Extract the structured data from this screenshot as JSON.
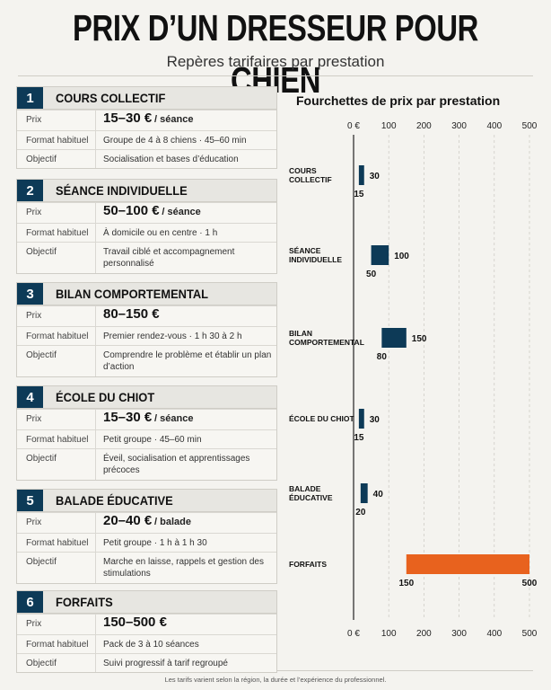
{
  "header": {
    "title": "PRIX D’UN DRESSEUR POUR CHIEN",
    "subtitle": "Repères tarifaires par prestation"
  },
  "labels": {
    "prix": "Prix",
    "format": "Format habituel",
    "objectif": "Objectif"
  },
  "cards": [
    {
      "num": "1",
      "title": "COURS COLLECTIF",
      "price": "15–30 €",
      "unit": "/ séance",
      "format": "Groupe de 4 à 8 chiens · 45–60 min",
      "objectif": "Socialisation et bases d’éducation"
    },
    {
      "num": "2",
      "title": "SÉANCE INDIVIDUELLE",
      "price": "50–100 €",
      "unit": "/ séance",
      "format": "À domicile ou en centre · 1 h",
      "objectif": "Travail ciblé et accompagnement personnalisé"
    },
    {
      "num": "3",
      "title": "BILAN COMPORTEMENTAL",
      "price": "80–150 €",
      "unit": "",
      "format": "Premier rendez-vous · 1 h 30 à 2 h",
      "objectif": "Comprendre le problème et établir un plan d’action"
    },
    {
      "num": "4",
      "title": "ÉCOLE DU CHIOT",
      "price": "15–30 €",
      "unit": "/ séance",
      "format": "Petit groupe · 45–60 min",
      "objectif": "Éveil, socialisation et apprentissages précoces"
    },
    {
      "num": "5",
      "title": "BALADE ÉDUCATIVE",
      "price": "20–40 €",
      "unit": "/ balade",
      "format": "Petit groupe · 1 h à 1 h 30",
      "objectif": "Marche en laisse, rappels et gestion des stimulations"
    },
    {
      "num": "6",
      "title": "FORFAITS",
      "price": "150–500 €",
      "unit": "",
      "format": "Pack de 3 à 10 séances",
      "objectif": "Suivi progressif à tarif regroupé"
    }
  ],
  "footnote": "Les tarifs varient selon la région, la durée et l’expérience du professionnel.",
  "chart_data": {
    "type": "bar",
    "orientation": "horizontal-range",
    "title": "Fourchettes de prix par prestation",
    "xlim": [
      0,
      500
    ],
    "xticks": [
      "0 €",
      "100",
      "200",
      "300",
      "400",
      "500"
    ],
    "categories": [
      [
        "COURS",
        "COLLECTIF"
      ],
      [
        "SÉANCE",
        "INDIVIDUELLE"
      ],
      [
        "BILAN",
        "COMPORTEMENTAL"
      ],
      [
        "ÉCOLE DU CHIOT"
      ],
      [
        "BALADE",
        "ÉDUCATIVE"
      ],
      [
        "FORFAITS"
      ]
    ],
    "ranges": [
      [
        15,
        30
      ],
      [
        50,
        100
      ],
      [
        80,
        150
      ],
      [
        15,
        30
      ],
      [
        20,
        40
      ],
      [
        150,
        500
      ]
    ],
    "colors": [
      "#0d3a57",
      "#0d3a57",
      "#0d3a57",
      "#0d3a57",
      "#0d3a57",
      "#e8621e"
    ],
    "axis_top": true,
    "axis_bottom": true
  }
}
